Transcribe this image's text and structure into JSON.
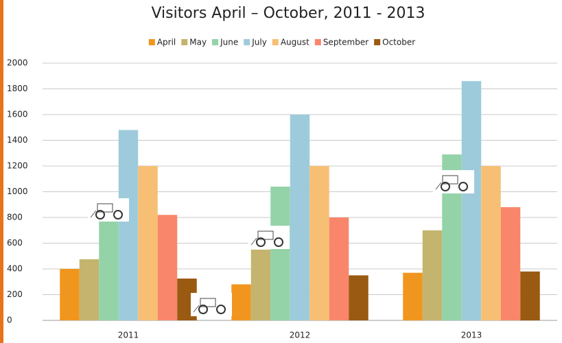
{
  "chart_data": {
    "type": "bar",
    "title": "Visitors April – October, 2011 - 2013",
    "categories": [
      "2011",
      "2012",
      "2013"
    ],
    "series": [
      {
        "name": "April",
        "color": "#f0961e",
        "values": [
          400,
          280,
          370
        ]
      },
      {
        "name": "May",
        "color": "#c4b46e",
        "values": [
          475,
          550,
          700
        ]
      },
      {
        "name": "June",
        "color": "#94d3a8",
        "values": [
          770,
          1040,
          1290
        ]
      },
      {
        "name": "July",
        "color": "#9ecbdb",
        "values": [
          1480,
          1600,
          1860
        ]
      },
      {
        "name": "August",
        "color": "#f7bf74",
        "values": [
          1200,
          1200,
          1200
        ]
      },
      {
        "name": "September",
        "color": "#f9866a",
        "values": [
          820,
          800,
          880
        ]
      },
      {
        "name": "October",
        "color": "#9a5a12",
        "values": [
          325,
          350,
          380
        ]
      }
    ],
    "ylim": [
      0,
      2000
    ],
    "yticks": [
      0,
      200,
      400,
      600,
      800,
      1000,
      1200,
      1400,
      1600,
      1800,
      2000
    ],
    "grid": true,
    "legend": "top"
  }
}
